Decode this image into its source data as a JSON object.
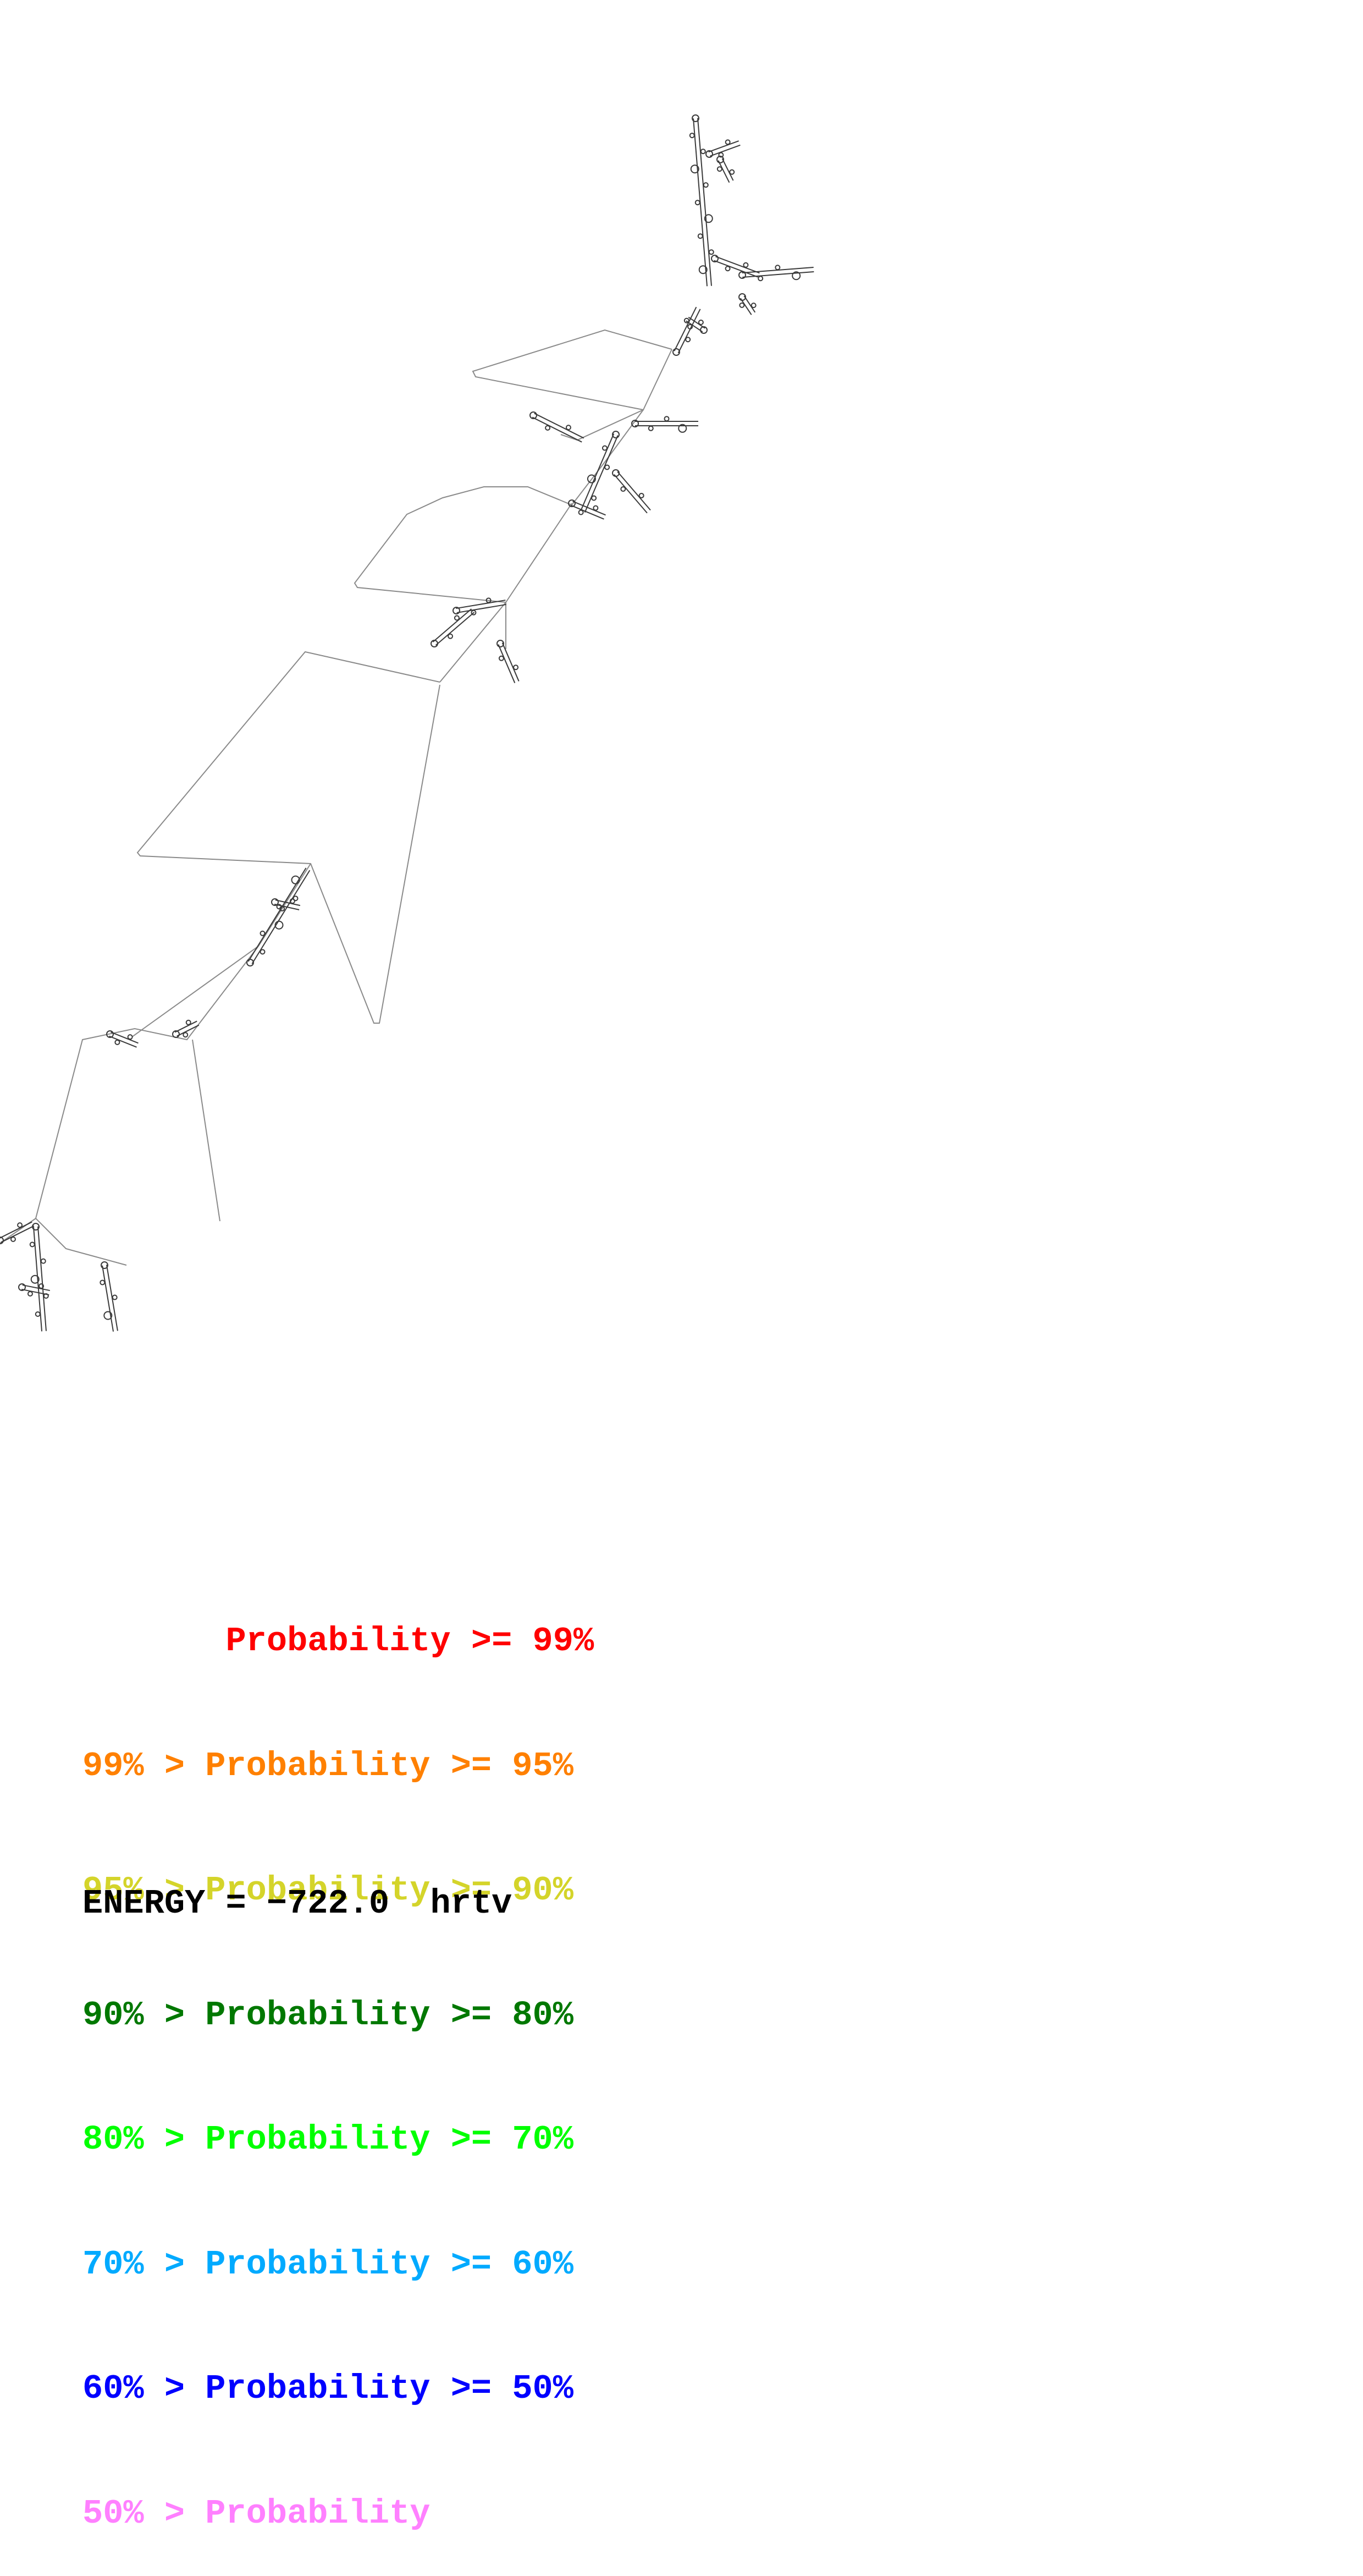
{
  "diagram": {
    "line_color": "#8a8a8a",
    "structure_color": "#3a3a3a"
  },
  "legend": [
    {
      "prefix": "       ",
      "text": "Probability >= 99%",
      "color": "#ff0000"
    },
    {
      "prefix": "99% > ",
      "text": "Probability >= 95%",
      "color": "#ff8000"
    },
    {
      "prefix": "95% > ",
      "text": "Probability >= 90%",
      "color": "#d4d42a"
    },
    {
      "prefix": "90% > ",
      "text": "Probability >= 80%",
      "color": "#007800"
    },
    {
      "prefix": "80% > ",
      "text": "Probability >= 70%",
      "color": "#00ff00"
    },
    {
      "prefix": "70% > ",
      "text": "Probability >= 60%",
      "color": "#00aaff"
    },
    {
      "prefix": "60% > ",
      "text": "Probability >= 50%",
      "color": "#0000ff"
    },
    {
      "prefix": "50% > ",
      "text": "Probability",
      "color": "#ff80ff"
    }
  ],
  "energy": {
    "label": "ENERGY = ",
    "value": "−722.0",
    "name": "hrtv"
  }
}
